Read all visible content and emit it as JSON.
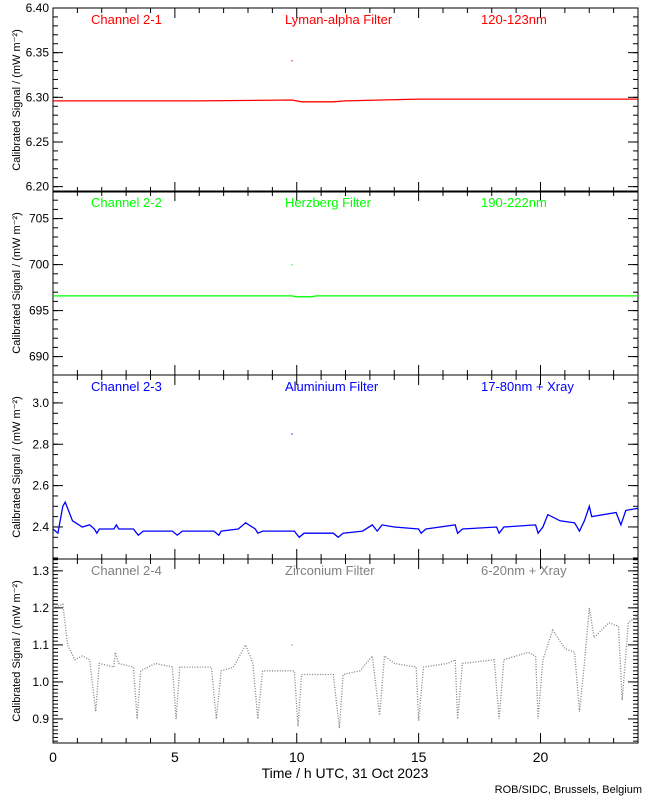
{
  "chart_data": [
    {
      "type": "line",
      "channel": "Channel 2-1",
      "filter": "Lyman-alpha Filter",
      "band": "120-123nm",
      "color": "#ff0000",
      "ylabel": "Calibrated Signal / (mW m⁻²)",
      "ylim": [
        6.194,
        6.4
      ],
      "yticks": [
        6.2,
        6.25,
        6.3,
        6.35,
        6.4
      ],
      "ytick_labels": [
        "6.20",
        "6.25",
        "6.30",
        "6.35",
        "6.40"
      ],
      "yminor": 5,
      "points": [
        [
          0,
          6.296
        ],
        [
          3,
          6.296
        ],
        [
          6,
          6.296
        ],
        [
          9.8,
          6.297
        ],
        [
          10.2,
          6.295
        ],
        [
          11.5,
          6.295
        ],
        [
          12,
          6.296
        ],
        [
          15,
          6.298
        ],
        [
          20,
          6.298
        ],
        [
          24,
          6.298
        ]
      ],
      "outliers": [
        [
          9.8,
          6.341
        ]
      ],
      "dotted": false
    },
    {
      "type": "line",
      "channel": "Channel 2-2",
      "filter": "Herzberg Filter",
      "band": "190-222nm",
      "color": "#00ff00",
      "ylabel": "Calibrated Signal / (mW m⁻²)",
      "ylim": [
        688.0,
        708.0
      ],
      "yticks": [
        690,
        695,
        700,
        705
      ],
      "ytick_labels": [
        "690",
        "695",
        "700",
        "705"
      ],
      "yminor": 5,
      "points": [
        [
          0,
          696.6
        ],
        [
          9.8,
          696.6
        ],
        [
          10.0,
          696.5
        ],
        [
          10.6,
          696.5
        ],
        [
          10.8,
          696.6
        ],
        [
          24,
          696.6
        ]
      ],
      "outliers": [
        [
          9.8,
          700.0
        ]
      ],
      "dotted": false
    },
    {
      "type": "line",
      "channel": "Channel 2-3",
      "filter": "Aluminium Filter",
      "band": "17-80nm + Xray",
      "color": "#0000ff",
      "ylabel": "Calibrated Signal / (mW m⁻²)",
      "ylim": [
        2.245,
        3.135
      ],
      "yticks": [
        2.4,
        2.6,
        2.8,
        3.0
      ],
      "ytick_labels": [
        "2.4",
        "2.6",
        "2.8",
        "3.0"
      ],
      "yminor": 4,
      "points": [
        [
          0,
          2.39
        ],
        [
          0.2,
          2.37
        ],
        [
          0.4,
          2.5
        ],
        [
          0.5,
          2.52
        ],
        [
          0.8,
          2.43
        ],
        [
          1.2,
          2.4
        ],
        [
          1.5,
          2.41
        ],
        [
          1.7,
          2.39
        ],
        [
          1.8,
          2.37
        ],
        [
          1.9,
          2.39
        ],
        [
          2.5,
          2.39
        ],
        [
          2.6,
          2.41
        ],
        [
          2.7,
          2.39
        ],
        [
          3.3,
          2.39
        ],
        [
          3.5,
          2.36
        ],
        [
          3.7,
          2.38
        ],
        [
          4.9,
          2.38
        ],
        [
          5.1,
          2.36
        ],
        [
          5.3,
          2.38
        ],
        [
          6.6,
          2.38
        ],
        [
          6.8,
          2.36
        ],
        [
          6.9,
          2.38
        ],
        [
          7.6,
          2.39
        ],
        [
          7.9,
          2.42
        ],
        [
          8.3,
          2.39
        ],
        [
          8.4,
          2.37
        ],
        [
          8.6,
          2.38
        ],
        [
          9.9,
          2.38
        ],
        [
          10.1,
          2.35
        ],
        [
          10.3,
          2.37
        ],
        [
          11.5,
          2.37
        ],
        [
          11.7,
          2.35
        ],
        [
          11.9,
          2.37
        ],
        [
          12.7,
          2.38
        ],
        [
          13.1,
          2.41
        ],
        [
          13.3,
          2.38
        ],
        [
          13.5,
          2.41
        ],
        [
          14,
          2.4
        ],
        [
          15,
          2.39
        ],
        [
          15.1,
          2.37
        ],
        [
          15.3,
          2.39
        ],
        [
          16.5,
          2.41
        ],
        [
          16.6,
          2.37
        ],
        [
          16.8,
          2.39
        ],
        [
          18.2,
          2.4
        ],
        [
          18.3,
          2.37
        ],
        [
          18.5,
          2.4
        ],
        [
          19.8,
          2.41
        ],
        [
          19.9,
          2.37
        ],
        [
          20.1,
          2.4
        ],
        [
          20.3,
          2.46
        ],
        [
          20.8,
          2.43
        ],
        [
          21.4,
          2.42
        ],
        [
          21.6,
          2.38
        ],
        [
          21.8,
          2.43
        ],
        [
          22.0,
          2.5
        ],
        [
          22.1,
          2.45
        ],
        [
          23.1,
          2.47
        ],
        [
          23.3,
          2.41
        ],
        [
          23.5,
          2.48
        ],
        [
          24,
          2.49
        ]
      ],
      "outliers": [
        [
          9.8,
          2.85
        ]
      ],
      "dotted": false
    },
    {
      "type": "scatter",
      "channel": "Channel 2-4",
      "filter": "Zirconium Filter",
      "band": "6-20nm + Xray",
      "color": "#808080",
      "ylabel": "Calibrated Signal / (mW m⁻²)",
      "ylim": [
        0.835,
        1.332
      ],
      "yticks": [
        0.9,
        1.0,
        1.1,
        1.2,
        1.3
      ],
      "ytick_labels": [
        "0.9",
        "1.0",
        "1.1",
        "1.2",
        "1.3"
      ],
      "yminor": 10,
      "points": [
        [
          0,
          1.2
        ],
        [
          0.4,
          1.21
        ],
        [
          0.6,
          1.1
        ],
        [
          0.9,
          1.06
        ],
        [
          1.2,
          1.07
        ],
        [
          1.5,
          1.06
        ],
        [
          1.75,
          0.92
        ],
        [
          1.9,
          1.05
        ],
        [
          2.5,
          1.04
        ],
        [
          2.55,
          1.08
        ],
        [
          2.7,
          1.05
        ],
        [
          3.3,
          1.04
        ],
        [
          3.45,
          0.9
        ],
        [
          3.6,
          1.03
        ],
        [
          4.2,
          1.05
        ],
        [
          4.9,
          1.04
        ],
        [
          5.05,
          0.9
        ],
        [
          5.2,
          1.04
        ],
        [
          6.5,
          1.04
        ],
        [
          6.7,
          0.9
        ],
        [
          6.9,
          1.03
        ],
        [
          7.4,
          1.04
        ],
        [
          7.9,
          1.1
        ],
        [
          8.2,
          1.05
        ],
        [
          8.4,
          0.9
        ],
        [
          8.6,
          1.03
        ],
        [
          9.9,
          1.03
        ],
        [
          10.05,
          0.88
        ],
        [
          10.2,
          1.02
        ],
        [
          11.5,
          1.02
        ],
        [
          11.75,
          0.875
        ],
        [
          11.9,
          1.02
        ],
        [
          12.6,
          1.03
        ],
        [
          13.1,
          1.07
        ],
        [
          13.3,
          0.96
        ],
        [
          13.4,
          0.91
        ],
        [
          13.6,
          1.07
        ],
        [
          14,
          1.05
        ],
        [
          14.9,
          1.04
        ],
        [
          15.0,
          0.895
        ],
        [
          15.2,
          1.04
        ],
        [
          16.2,
          1.05
        ],
        [
          16.5,
          1.06
        ],
        [
          16.6,
          0.9
        ],
        [
          16.8,
          1.05
        ],
        [
          18.1,
          1.06
        ],
        [
          18.3,
          0.9
        ],
        [
          18.5,
          1.06
        ],
        [
          19.5,
          1.08
        ],
        [
          19.8,
          1.07
        ],
        [
          19.9,
          0.9
        ],
        [
          20.1,
          1.06
        ],
        [
          20.5,
          1.14
        ],
        [
          21,
          1.09
        ],
        [
          21.4,
          1.08
        ],
        [
          21.6,
          0.92
        ],
        [
          21.8,
          1.05
        ],
        [
          22.0,
          1.2
        ],
        [
          22.2,
          1.12
        ],
        [
          22.8,
          1.16
        ],
        [
          23.2,
          1.15
        ],
        [
          23.35,
          0.95
        ],
        [
          23.6,
          1.16
        ],
        [
          24,
          1.18
        ]
      ],
      "outliers": [
        [
          9.8,
          1.1
        ]
      ],
      "dotted": true
    }
  ],
  "xaxis": {
    "xlim": [
      0,
      24
    ],
    "xticks": [
      0,
      5,
      10,
      15,
      20
    ],
    "xtick_labels": [
      "0",
      "5",
      "10",
      "15",
      "20"
    ],
    "xlabel": "Time / h UTC, 31 Oct 2023"
  },
  "credit": "ROB/SIDC, Brussels, Belgium"
}
